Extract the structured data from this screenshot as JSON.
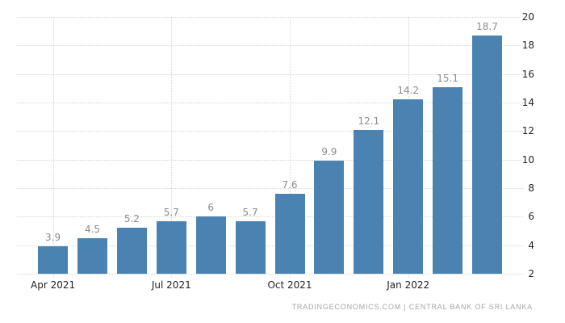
{
  "chart_data": {
    "type": "bar",
    "title": "",
    "xlabel": "",
    "ylabel": "",
    "values": [
      3.9,
      4.5,
      5.2,
      5.7,
      6,
      5.7,
      7.6,
      9.9,
      12.1,
      14.2,
      15.1,
      18.7
    ],
    "bar_value_labels": [
      "3.9",
      "4.5",
      "5.2",
      "5.7",
      "6",
      "5.7",
      "7.6",
      "9.9",
      "12.1",
      "14.2",
      "15.1",
      "18.7"
    ],
    "x_ticks": [
      {
        "bar_index": 0,
        "label": "Apr 2021"
      },
      {
        "bar_index": 3,
        "label": "Jul 2021"
      },
      {
        "bar_index": 6,
        "label": "Oct 2021"
      },
      {
        "bar_index": 9,
        "label": "Jan 2022"
      }
    ],
    "y_ticks": [
      2,
      4,
      6,
      8,
      10,
      12,
      14,
      16,
      18,
      20
    ],
    "ylim": [
      2,
      20
    ],
    "y_axis_side": "right",
    "grid": true,
    "legend": "none",
    "bar_color": "#4a83b2",
    "value_label_color": "#8c8c8c",
    "axis_label_color": "#222222",
    "gridline_color": "#d4d4d4"
  },
  "footer": {
    "attribution": "TRADINGECONOMICS.COM | CENTRAL BANK OF SRI LANKA"
  }
}
